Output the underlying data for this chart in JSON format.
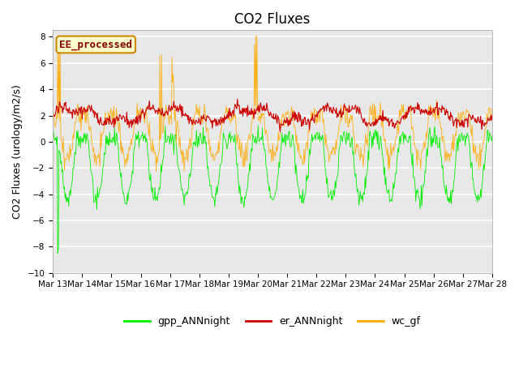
{
  "title": "CO2 Fluxes",
  "ylabel": "CO2 Fluxes (urology/m2/s)",
  "ylim": [
    -10,
    8.5
  ],
  "yticks": [
    -10,
    -8,
    -6,
    -4,
    -2,
    0,
    2,
    4,
    6,
    8
  ],
  "background_color": "#ffffff",
  "plot_bg_color": "#e8e8e8",
  "annotation_text": "EE_processed",
  "annotation_bg": "#ffffcc",
  "annotation_border": "#cc8800",
  "annotation_text_color": "#880000",
  "legend_entries": [
    "gpp_ANNnight",
    "er_ANNnight",
    "wc_gf"
  ],
  "line_colors": [
    "#00ee00",
    "#cc0000",
    "#ffaa00"
  ],
  "n_days": 15,
  "pts_per_day": 48,
  "x_tick_labels": [
    "Mar 13",
    "Mar 14",
    "Mar 15",
    "Mar 16",
    "Mar 17",
    "Mar 18",
    "Mar 19",
    "Mar 20",
    "Mar 21",
    "Mar 22",
    "Mar 23",
    "Mar 24",
    "Mar 25",
    "Mar 26",
    "Mar 27",
    "Mar 28"
  ],
  "title_fontsize": 12,
  "label_fontsize": 9,
  "tick_fontsize": 7.5,
  "legend_fontsize": 9
}
